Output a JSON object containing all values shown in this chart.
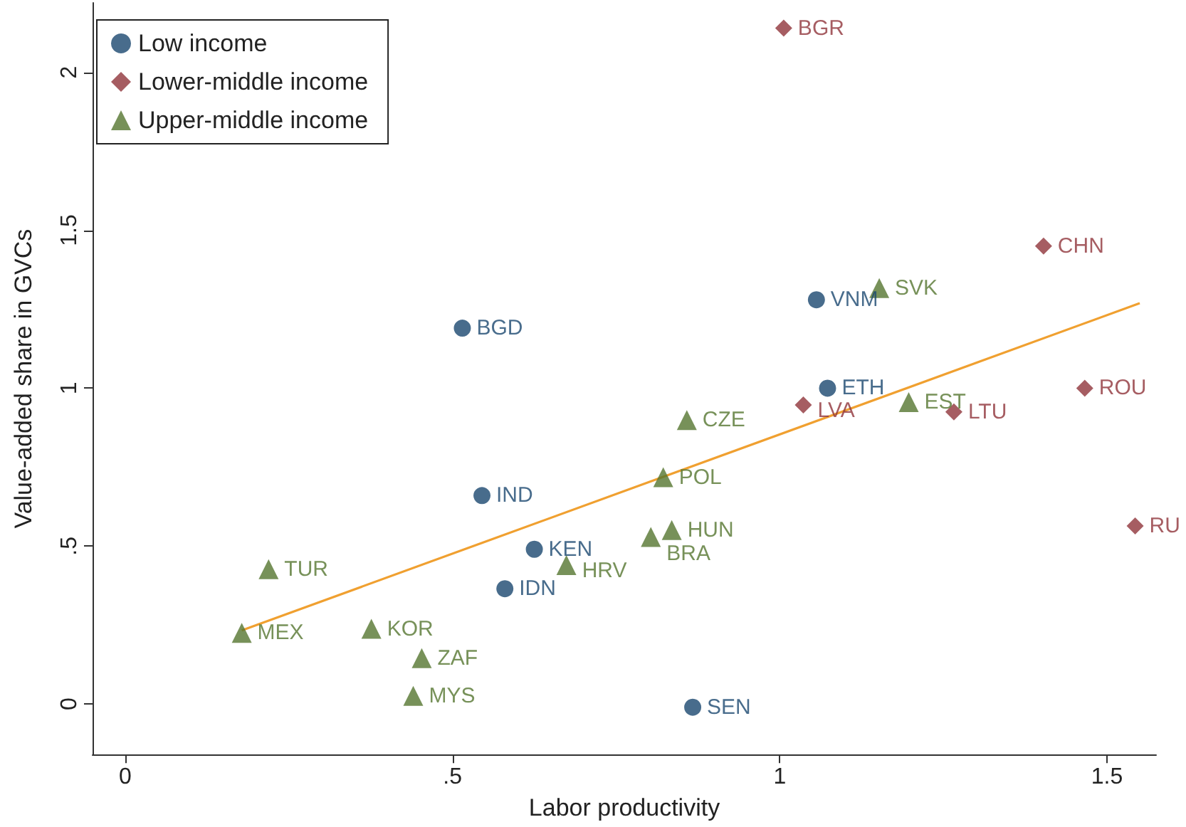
{
  "chart_data": {
    "type": "scatter",
    "xlabel": "Labor productivity",
    "ylabel": "Value-added share in GVCs",
    "xlim": [
      -0.05,
      1.575
    ],
    "ylim": [
      -0.16,
      2.22
    ],
    "xticks": [
      0,
      {
        "value": 0.5,
        "label": ".5"
      },
      1,
      1.5
    ],
    "yticks": [
      0,
      {
        "value": 0.5,
        "label": ".5"
      },
      1,
      1.5,
      2
    ],
    "grid": false,
    "legend": "top left",
    "series": [
      {
        "name": "Low income",
        "color": "#1a476f",
        "marker": "circle",
        "x": [
          0.515,
          0.545,
          0.625,
          0.58,
          0.867,
          1.056,
          1.073
        ],
        "values": [
          1.19,
          0.66,
          0.49,
          0.365,
          -0.01,
          1.28,
          1.0
        ],
        "value_labels": [
          "BGD",
          "IND",
          "KEN",
          "IDN",
          "SEN",
          "VNM",
          "ETH"
        ]
      },
      {
        "name": "Lower-middle income",
        "color": "#90353b",
        "marker": "diamond",
        "x": [
          1.006,
          1.403,
          1.466,
          1.266,
          1.036,
          1.543
        ],
        "values": [
          2.14,
          1.45,
          1.0,
          0.925,
          0.947,
          0.564
        ],
        "value_labels": [
          "BGR",
          "CHN",
          "ROU",
          "LTU",
          "LVA",
          "RU"
        ]
      },
      {
        "name": "Upper-middle income",
        "color": "#55752f",
        "marker": "triangle",
        "x": [
          1.152,
          1.197,
          0.858,
          0.822,
          0.835,
          0.803,
          0.674,
          0.219,
          0.178,
          0.376,
          0.453,
          0.44
        ],
        "values": [
          1.317,
          0.956,
          0.899,
          0.718,
          0.551,
          0.529,
          0.44,
          0.427,
          0.225,
          0.238,
          0.145,
          0.026
        ],
        "value_labels": [
          "SVK",
          "EST",
          "CZE",
          "POL",
          "HUN",
          "BRA",
          "HRV",
          "TUR",
          "MEX",
          "KOR",
          "ZAF",
          "MYS"
        ]
      },
      {
        "type": "line",
        "color": "#f0a030",
        "marker": "none",
        "x": [
          0.178,
          1.55
        ],
        "values": [
          0.233,
          1.269
        ]
      }
    ]
  }
}
